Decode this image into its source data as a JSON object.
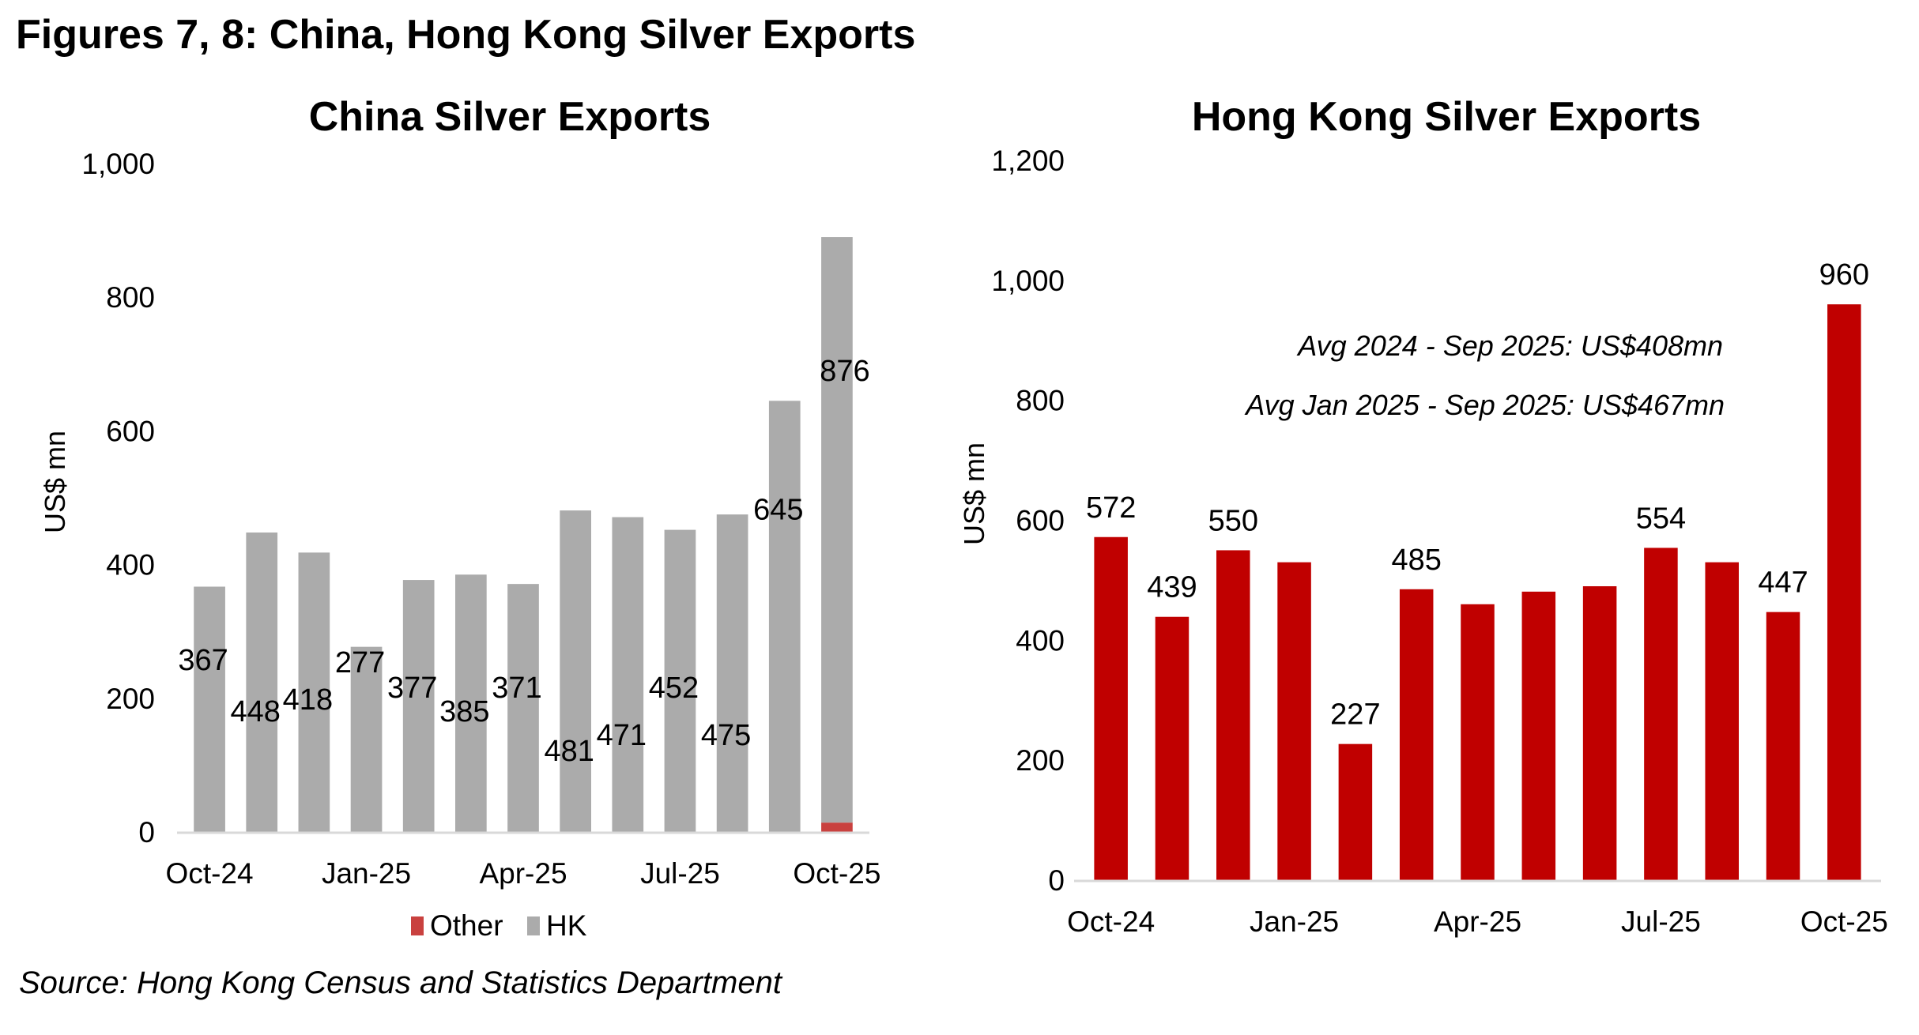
{
  "figure": {
    "title": "Figures 7, 8: China, Hong Kong Silver Exports",
    "source": "Source: Hong Kong Census and Statistics Department"
  },
  "colors": {
    "hk_grey": "#ababab",
    "other_red": "#c9413f",
    "hk_bar_red": "#c00000",
    "axis_line": "#d9d9d9"
  },
  "chart_data": [
    {
      "id": "china",
      "type": "bar",
      "stacked": true,
      "title": "China Silver Exports",
      "xlabel": "",
      "ylabel": "US$ mn",
      "ylim": [
        0,
        1000
      ],
      "yticks": [
        0,
        200,
        400,
        600,
        800,
        1000
      ],
      "ytick_labels": [
        "0",
        "200",
        "400",
        "600",
        "800",
        "1,000"
      ],
      "categories": [
        "Oct-24",
        "Nov-24",
        "Dec-24",
        "Jan-25",
        "Feb-25",
        "Mar-25",
        "Apr-25",
        "May-25",
        "Jun-25",
        "Jul-25",
        "Aug-25",
        "Sep-25",
        "Oct-25"
      ],
      "xtick_labels": [
        "Oct-24",
        "",
        "",
        "Jan-25",
        "",
        "",
        "Apr-25",
        "",
        "",
        "Jul-25",
        "",
        "",
        "Oct-25"
      ],
      "series": [
        {
          "name": "Other",
          "color": "#c9413f",
          "values": [
            0,
            0,
            0,
            0,
            0,
            0,
            0,
            0,
            0,
            0,
            0,
            0,
            14
          ]
        },
        {
          "name": "HK",
          "color": "#ababab",
          "values": [
            367,
            448,
            418,
            277,
            377,
            385,
            371,
            481,
            471,
            452,
            475,
            645,
            876
          ]
        }
      ],
      "data_labels": [
        "367",
        "448",
        "418",
        "277",
        "377",
        "385",
        "371",
        "481",
        "471",
        "452",
        "475",
        "645",
        "876"
      ],
      "legend": {
        "position": "bottom",
        "entries": [
          "Other",
          "HK"
        ]
      },
      "grid": false
    },
    {
      "id": "hongkong",
      "type": "bar",
      "title": "Hong Kong Silver Exports",
      "xlabel": "",
      "ylabel": "US$ mn",
      "ylim": [
        0,
        1200
      ],
      "yticks": [
        0,
        200,
        400,
        600,
        800,
        1000,
        1200
      ],
      "ytick_labels": [
        "0",
        "200",
        "400",
        "600",
        "800",
        "1,000",
        "1,200"
      ],
      "categories": [
        "Oct-24",
        "Nov-24",
        "Dec-24",
        "Jan-25",
        "Feb-25",
        "Mar-25",
        "Apr-25",
        "May-25",
        "Jun-25",
        "Jul-25",
        "Aug-25",
        "Sep-25",
        "Oct-25"
      ],
      "xtick_labels": [
        "Oct-24",
        "",
        "",
        "Jan-25",
        "",
        "",
        "Apr-25",
        "",
        "",
        "Jul-25",
        "",
        "",
        "Oct-25"
      ],
      "series": [
        {
          "name": "Hong Kong",
          "color": "#c00000",
          "values": [
            572,
            439,
            550,
            530,
            227,
            485,
            460,
            481,
            490,
            554,
            530,
            447,
            960
          ]
        }
      ],
      "data_labels": [
        "572",
        "439",
        "550",
        "",
        "227",
        "485",
        "",
        "",
        "",
        "554",
        "",
        "447",
        "960"
      ],
      "annotations": [
        "Avg 2024 - Sep 2025: US$408mn",
        "Avg Jan 2025 - Sep 2025: US$467mn"
      ],
      "grid": false
    }
  ]
}
